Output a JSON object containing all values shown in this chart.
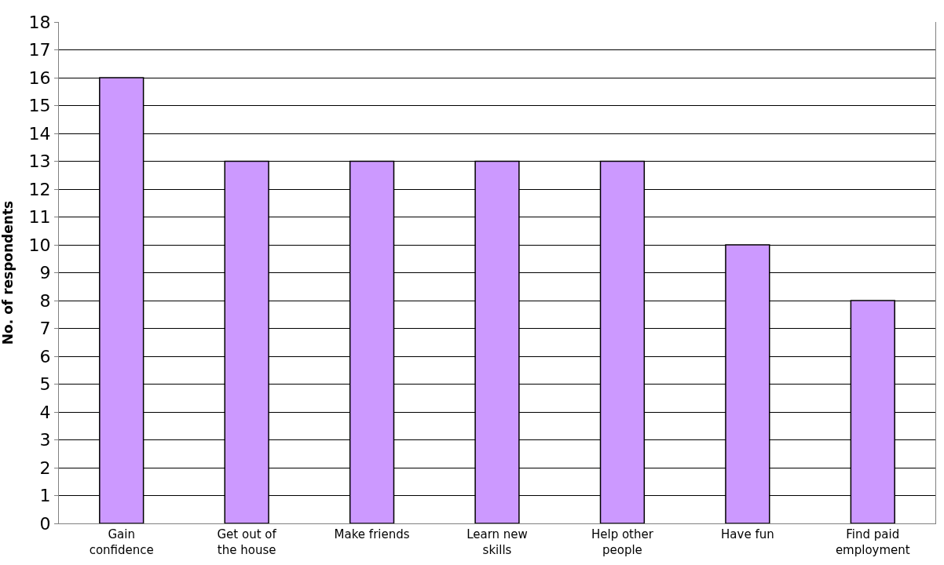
{
  "chart_data": {
    "type": "bar",
    "ylabel": "No. of respondents",
    "categories": [
      "Gain confidence",
      "Get out of the house",
      "Make friends",
      "Learn new skills",
      "Help other people",
      "Have fun",
      "Find paid employment"
    ],
    "values": [
      16,
      13,
      13,
      13,
      13,
      10,
      8
    ],
    "color": "#cc99ff",
    "ylim": [
      0,
      18
    ],
    "yticks": [
      0,
      1,
      2,
      3,
      4,
      5,
      6,
      7,
      8,
      9,
      10,
      11,
      12,
      13,
      14,
      15,
      16,
      17,
      18
    ],
    "grid": "y"
  }
}
